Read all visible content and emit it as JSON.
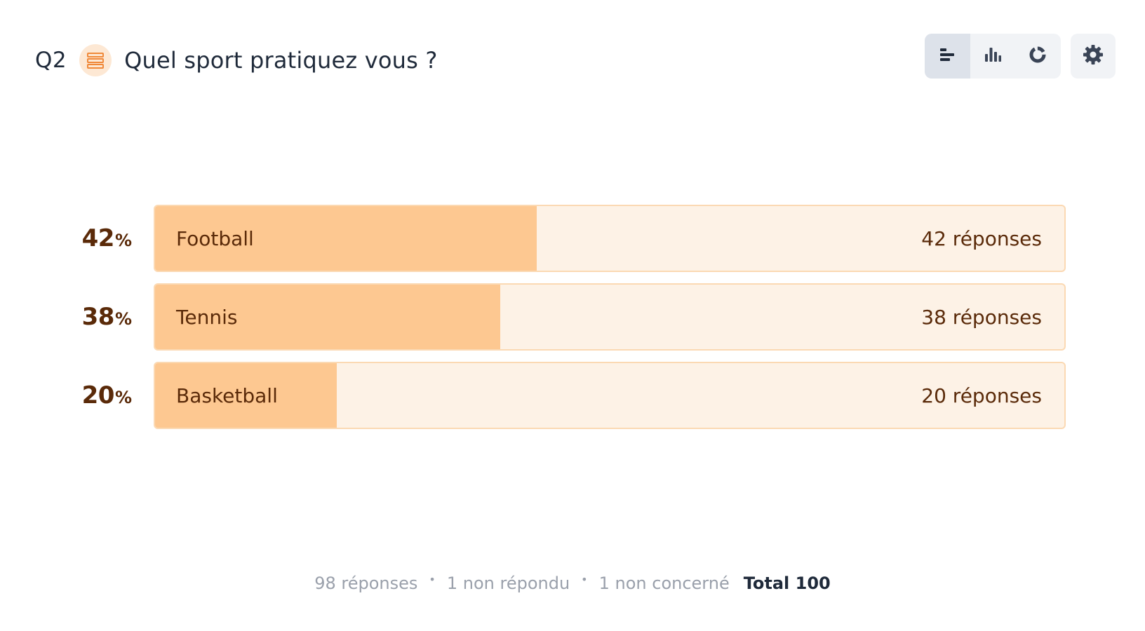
{
  "question": {
    "number": "Q2",
    "type_icon": "list-lines-icon",
    "title": "Quel sport pratiquez vous ?"
  },
  "view_toggle": {
    "options": [
      {
        "icon": "horizontal-bar-chart-icon",
        "active": true
      },
      {
        "icon": "vertical-bar-chart-icon",
        "active": false
      },
      {
        "icon": "donut-chart-icon",
        "active": false
      }
    ],
    "settings_icon": "gear-icon"
  },
  "colors": {
    "fill": "#fdc891",
    "track": "#fdf2e6",
    "border": "#fbd9b3",
    "text": "#5a2a09",
    "accent_icon": "#f0893a"
  },
  "chart_data": {
    "type": "bar",
    "orientation": "horizontal",
    "categories": [
      "Football",
      "Tennis",
      "Basketball"
    ],
    "values": [
      42,
      38,
      20
    ],
    "percent_labels": [
      "42",
      "38",
      "20"
    ],
    "percent_symbol": "%",
    "count_labels": [
      "42 réponses",
      "38 réponses",
      "20 réponses"
    ],
    "unit": "%"
  },
  "footer": {
    "responses": "98 réponses",
    "unanswered": "1 non répondu",
    "not_concerned": "1 non concerné",
    "separator": "•",
    "total": "Total 100"
  }
}
